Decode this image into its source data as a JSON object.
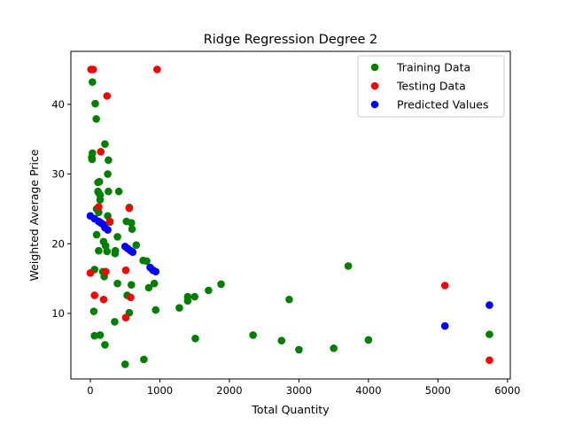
{
  "chart_data": {
    "type": "scatter",
    "title": "Ridge Regression Degree 2",
    "xlabel": "Total Quantity",
    "ylabel": "Weighted Average Price",
    "xlim": [
      -280,
      6040
    ],
    "ylim": [
      0.6,
      47.6
    ],
    "xticks": [
      0,
      1000,
      2000,
      3000,
      4000,
      5000,
      6000
    ],
    "yticks": [
      10,
      20,
      30,
      40
    ],
    "grid": false,
    "legend_position": "top-right",
    "series": [
      {
        "name": "Training Data",
        "color": "#008000",
        "points": [
          [
            30,
            43.2
          ],
          [
            70,
            40.1
          ],
          [
            85,
            37.9
          ],
          [
            210,
            34.3
          ],
          [
            30,
            33.0
          ],
          [
            20,
            32.4
          ],
          [
            25,
            32.1
          ],
          [
            260,
            32.0
          ],
          [
            250,
            30.0
          ],
          [
            130,
            28.9
          ],
          [
            110,
            28.8
          ],
          [
            110,
            27.5
          ],
          [
            120,
            27.3
          ],
          [
            140,
            27.0
          ],
          [
            260,
            27.5
          ],
          [
            410,
            27.5
          ],
          [
            140,
            26.3
          ],
          [
            560,
            25.2
          ],
          [
            90,
            25.0
          ],
          [
            120,
            24.5
          ],
          [
            250,
            24.0
          ],
          [
            280,
            23.1
          ],
          [
            520,
            23.2
          ],
          [
            590,
            23.0
          ],
          [
            600,
            22.1
          ],
          [
            90,
            21.3
          ],
          [
            390,
            21.0
          ],
          [
            190,
            20.3
          ],
          [
            220,
            19.7
          ],
          [
            660,
            19.8
          ],
          [
            120,
            19.0
          ],
          [
            360,
            19.0
          ],
          [
            355,
            18.6
          ],
          [
            240,
            18.9
          ],
          [
            760,
            17.6
          ],
          [
            810,
            17.5
          ],
          [
            60,
            16.3
          ],
          [
            180,
            16.0
          ],
          [
            200,
            15.3
          ],
          [
            390,
            14.3
          ],
          [
            590,
            14.1
          ],
          [
            920,
            14.3
          ],
          [
            840,
            13.7
          ],
          [
            530,
            12.6
          ],
          [
            1400,
            12.4
          ],
          [
            1500,
            12.4
          ],
          [
            1700,
            13.3
          ],
          [
            1880,
            14.2
          ],
          [
            3710,
            16.8
          ],
          [
            2860,
            12.0
          ],
          [
            1400,
            11.8
          ],
          [
            1280,
            10.8
          ],
          [
            940,
            10.5
          ],
          [
            50,
            10.3
          ],
          [
            560,
            10.1
          ],
          [
            350,
            8.8
          ],
          [
            140,
            6.9
          ],
          [
            60,
            6.8
          ],
          [
            1510,
            6.4
          ],
          [
            2340,
            6.9
          ],
          [
            2750,
            6.1
          ],
          [
            3000,
            4.8
          ],
          [
            3500,
            5.0
          ],
          [
            4000,
            6.2
          ],
          [
            5740,
            7.0
          ],
          [
            210,
            5.5
          ],
          [
            770,
            3.4
          ],
          [
            500,
            2.7
          ]
        ]
      },
      {
        "name": "Testing Data",
        "color": "#ff0000",
        "points": [
          [
            10,
            45.0
          ],
          [
            40,
            45.0
          ],
          [
            960,
            45.0
          ],
          [
            240,
            41.2
          ],
          [
            150,
            33.2
          ],
          [
            120,
            25.3
          ],
          [
            560,
            25.1
          ],
          [
            280,
            23.2
          ],
          [
            220,
            16.0
          ],
          [
            510,
            16.2
          ],
          [
            0,
            15.8
          ],
          [
            60,
            12.6
          ],
          [
            580,
            12.3
          ],
          [
            190,
            12.0
          ],
          [
            510,
            9.4
          ],
          [
            5100,
            14.0
          ],
          [
            5740,
            3.3
          ]
        ]
      },
      {
        "name": "Predicted Values",
        "color": "#0000ff",
        "points": [
          [
            0,
            24.0
          ],
          [
            60,
            23.6
          ],
          [
            120,
            23.2
          ],
          [
            150,
            23.0
          ],
          [
            180,
            22.8
          ],
          [
            210,
            22.3
          ],
          [
            250,
            22.0
          ],
          [
            500,
            19.6
          ],
          [
            540,
            19.3
          ],
          [
            580,
            19.0
          ],
          [
            610,
            18.8
          ],
          [
            860,
            16.6
          ],
          [
            900,
            16.2
          ],
          [
            940,
            16.0
          ],
          [
            5100,
            8.2
          ],
          [
            5740,
            11.2
          ]
        ]
      }
    ]
  }
}
